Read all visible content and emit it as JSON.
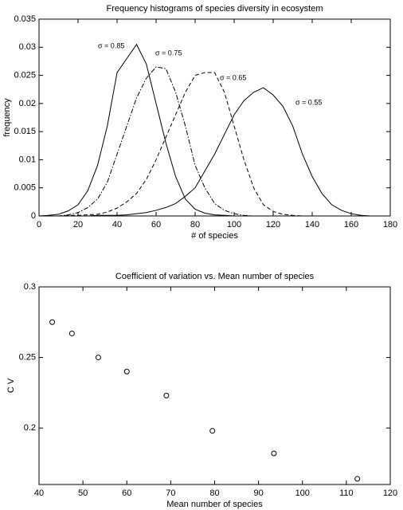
{
  "chart_data": [
    {
      "type": "line",
      "title": "Frequency histograms of species diversity in ecosystem",
      "x_label": "# of species",
      "y_label": "frequency",
      "x": [
        0,
        5,
        10,
        15,
        20,
        25,
        30,
        35,
        40,
        45,
        50,
        55,
        60,
        65,
        70,
        75,
        80,
        85,
        90,
        95,
        100,
        105,
        110,
        115,
        120,
        125,
        130,
        135,
        140,
        145,
        150,
        155,
        160,
        165,
        170
      ],
      "series": [
        {
          "name": "σ = 0.85",
          "color": "#000000",
          "dash": "solid",
          "values": [
            0,
            0.0001,
            0.0003,
            0.0009,
            0.002,
            0.0045,
            0.009,
            0.016,
            0.0255,
            0.028,
            0.0305,
            0.027,
            0.02,
            0.013,
            0.007,
            0.003,
            0.0012,
            0.0005,
            0.0002,
            0.0001,
            0,
            0,
            0,
            0,
            0,
            0,
            0,
            0,
            0,
            0,
            0,
            0,
            0,
            0,
            0
          ]
        },
        {
          "name": "σ = 0.75",
          "color": "#000000",
          "dash": "dashdot",
          "values": [
            0,
            0,
            0,
            0.0002,
            0.0006,
            0.0015,
            0.003,
            0.006,
            0.011,
            0.016,
            0.021,
            0.0245,
            0.0265,
            0.0262,
            0.022,
            0.016,
            0.009,
            0.005,
            0.0022,
            0.001,
            0.0004,
            0.0001,
            0,
            0,
            0,
            0,
            0,
            0,
            0,
            0,
            0,
            0,
            0,
            0,
            0
          ]
        },
        {
          "name": "σ = 0.65",
          "color": "#000000",
          "dash": "dashed",
          "values": [
            0,
            0,
            0,
            0.0001,
            0.0001,
            0.0002,
            0.0003,
            0.0007,
            0.0014,
            0.0025,
            0.004,
            0.0065,
            0.01,
            0.014,
            0.018,
            0.022,
            0.025,
            0.0255,
            0.0255,
            0.022,
            0.016,
            0.01,
            0.005,
            0.002,
            0.0008,
            0.0003,
            0.0001,
            0,
            0,
            0,
            0,
            0,
            0,
            0,
            0
          ]
        },
        {
          "name": "σ = 0.55",
          "color": "#000000",
          "dash": "solid",
          "values": [
            0,
            0,
            0,
            0,
            0,
            0,
            0.0001,
            0.0001,
            0.0001,
            0.0002,
            0.0004,
            0.0006,
            0.001,
            0.0015,
            0.0022,
            0.0035,
            0.005,
            0.008,
            0.011,
            0.0145,
            0.018,
            0.0205,
            0.022,
            0.0228,
            0.0215,
            0.0195,
            0.016,
            0.011,
            0.007,
            0.004,
            0.002,
            0.001,
            0.0004,
            0.0001,
            0
          ]
        }
      ],
      "xlim": [
        0,
        180
      ],
      "xticks": [
        0,
        20,
        40,
        60,
        80,
        100,
        120,
        140,
        160,
        180
      ],
      "ylim": [
        0,
        0.035
      ],
      "yticks": [
        0,
        0.005,
        0.01,
        0.015,
        0.02,
        0.025,
        0.03,
        0.035
      ]
    },
    {
      "type": "scatter",
      "title": "Coefficient of variation vs. Mean number of species",
      "x_label": "Mean number of species",
      "y_label": "C V",
      "x": [
        43,
        47.5,
        53.5,
        60,
        69,
        79.5,
        93.5,
        112.5
      ],
      "values": [
        0.275,
        0.267,
        0.25,
        0.24,
        0.223,
        0.198,
        0.182,
        0.164
      ],
      "color": "#000000",
      "marker": "circle",
      "xlim": [
        40,
        120
      ],
      "xticks": [
        40,
        50,
        60,
        70,
        80,
        90,
        100,
        110,
        120
      ],
      "ylim": [
        0.16,
        0.3
      ],
      "yticks": [
        0.2,
        0.25,
        0.3
      ]
    }
  ]
}
